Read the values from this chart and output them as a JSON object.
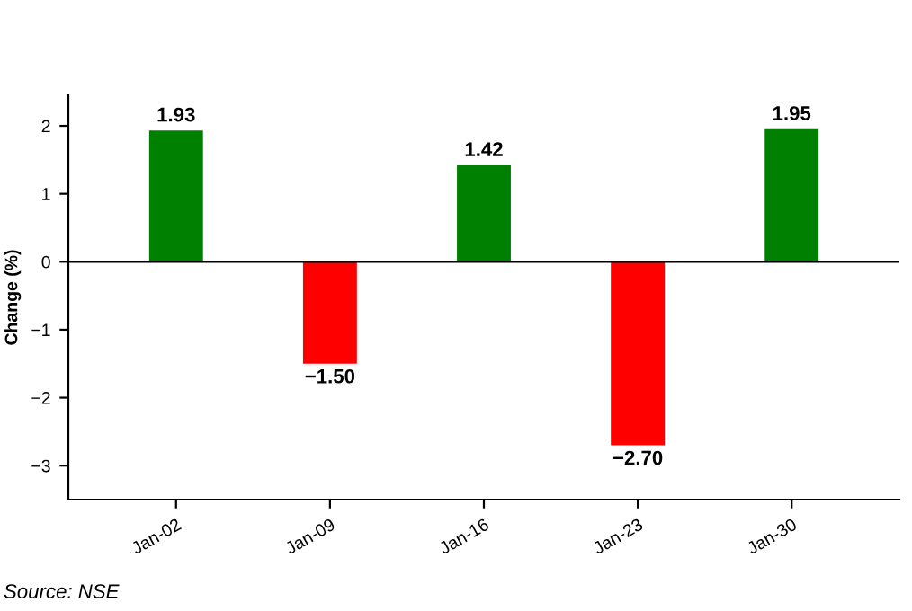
{
  "chart_data": {
    "type": "bar",
    "ylabel": "Change (%)",
    "categories": [
      "Jan-02",
      "Jan-09",
      "Jan-16",
      "Jan-23",
      "Jan-30"
    ],
    "values": [
      1.93,
      -1.5,
      1.42,
      -2.7,
      1.95
    ],
    "value_labels": [
      "1.93",
      "−1.50",
      "1.42",
      "−2.70",
      "1.95"
    ],
    "colors": [
      "#008000",
      "#ff0000",
      "#008000",
      "#ff0000",
      "#008000"
    ],
    "ylim": [
      -3.5,
      2.45
    ],
    "yticks": [
      {
        "value": -3,
        "label": "−3"
      },
      {
        "value": -2,
        "label": "−2"
      },
      {
        "value": -1,
        "label": "−1"
      },
      0,
      1,
      2
    ],
    "ref_lines": [
      {
        "axis": "y",
        "value": 0,
        "color": "#000000"
      }
    ],
    "grid": false,
    "annotations": [
      "Source: NSE"
    ]
  }
}
